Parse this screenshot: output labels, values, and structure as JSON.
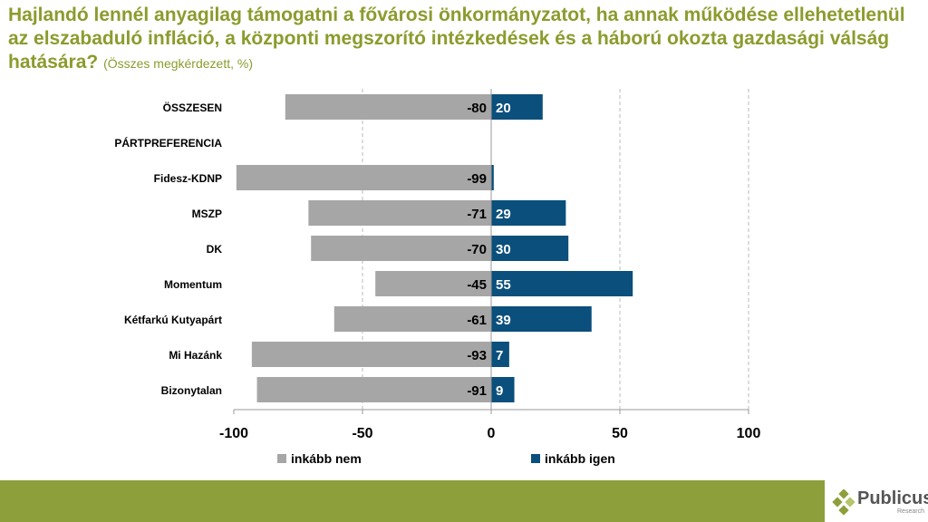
{
  "title": "Hajlandó lennél anyagilag támogatni a fővárosi önkormányzatot, ha annak működése ellehetetlenül az elszabaduló infláció, a központi megszorító intézkedések és a háború okozta gazdasági válság hatására?",
  "subtitle": "(Összes megkérdezett, %)",
  "logo": {
    "name": "Publicus",
    "tagline": "Research"
  },
  "colors": {
    "nem": "#a6a6a6",
    "igen": "#0b4f7c",
    "title": "#8c9b2d",
    "band": "#8d9f3b"
  },
  "chart_data": {
    "type": "bar",
    "orientation": "horizontal-diverging",
    "categories": [
      "ÖSSZESEN",
      "PÁRTPREFERENCIA",
      "Fidesz-KDNP",
      "MSZP",
      "DK",
      "Momentum",
      "Kétfarkú Kutyapárt",
      "Mi Hazánk",
      "Bizonytalan"
    ],
    "series": [
      {
        "name": "inkább nem",
        "values": [
          -80,
          null,
          -99,
          -71,
          -70,
          -45,
          -61,
          -93,
          -91
        ]
      },
      {
        "name": "inkább igen",
        "values": [
          20,
          null,
          1,
          29,
          30,
          55,
          39,
          7,
          9
        ]
      }
    ],
    "data_labels": {
      "inkább nem": [
        "-80",
        "",
        "-99",
        "-71",
        "-70",
        "-45",
        "-61",
        "-93",
        "-91"
      ],
      "inkább igen": [
        "20",
        "",
        "",
        "29",
        "30",
        "55",
        "39",
        "7",
        "9"
      ]
    },
    "xlim": [
      -100,
      100
    ],
    "xticks": [
      "-100",
      "-50",
      "0",
      "50",
      "100"
    ],
    "legend": "bottom",
    "grid": true
  }
}
